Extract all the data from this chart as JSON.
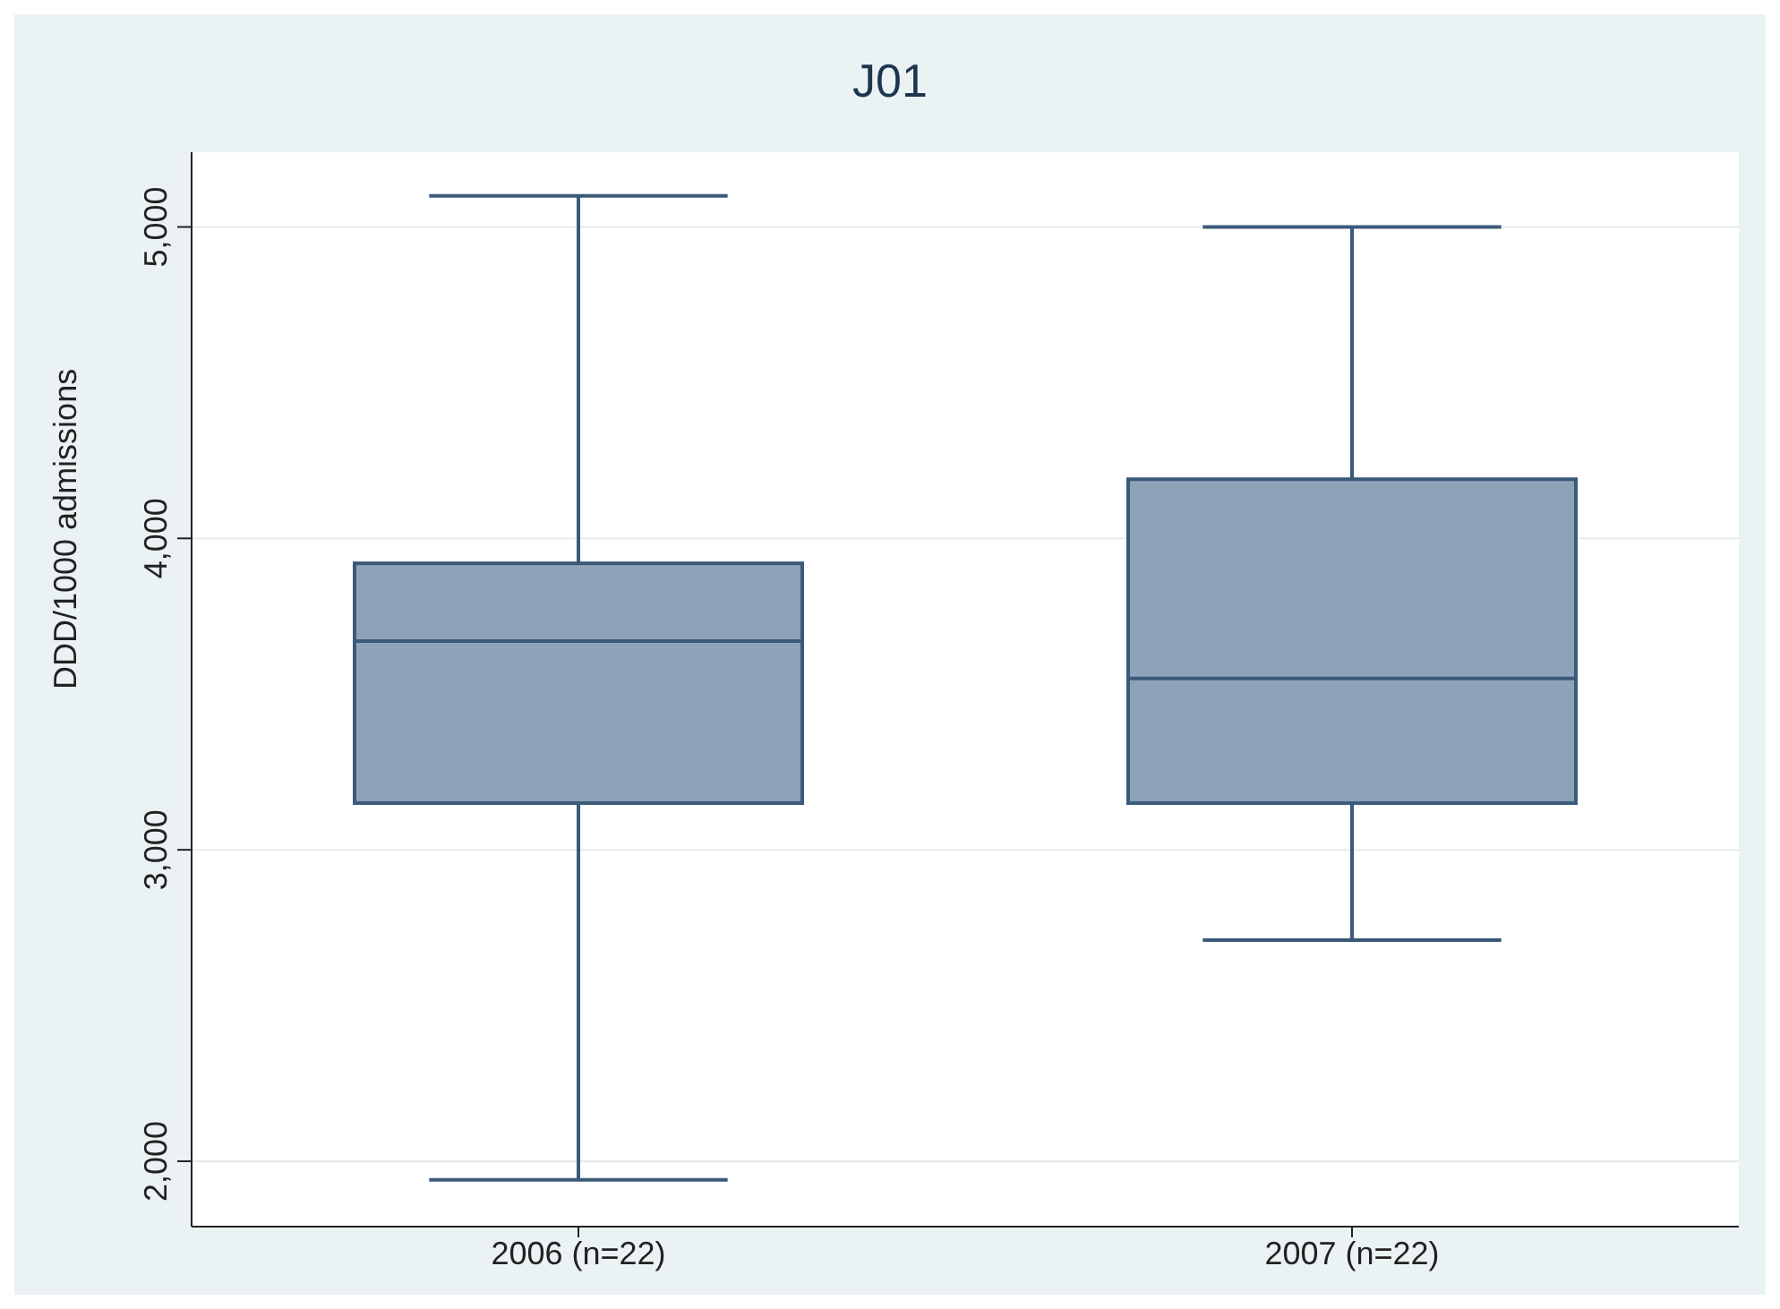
{
  "chart_data": {
    "type": "box",
    "title": "J01",
    "ylabel": "DDD/1000 admissions",
    "categories": [
      "2006 (n=22)",
      "2007 (n=22)"
    ],
    "boxes": [
      {
        "low": 1940,
        "q1": 3150,
        "median": 3670,
        "q3": 3920,
        "high": 5100
      },
      {
        "low": 2710,
        "q1": 3150,
        "median": 3550,
        "q3": 4190,
        "high": 5000
      }
    ],
    "color": "#8ea3b8",
    "ylim": [
      1790,
      5240
    ],
    "yticks": [
      {
        "value": 2000,
        "label": "2,000"
      },
      {
        "value": 3000,
        "label": "3,000"
      },
      {
        "value": 4000,
        "label": "4,000"
      },
      {
        "value": 5000,
        "label": "5,000"
      }
    ],
    "grid": "y"
  }
}
